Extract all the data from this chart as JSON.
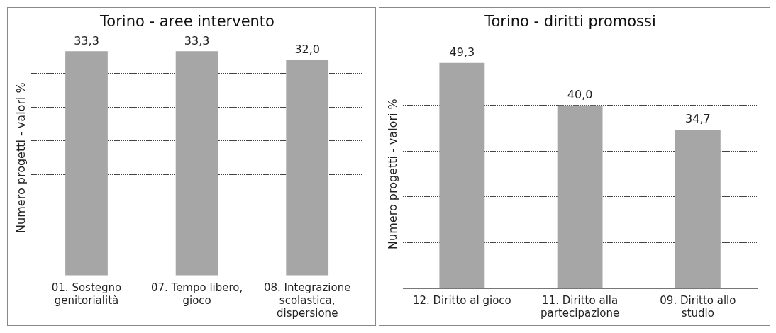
{
  "chart_data": [
    {
      "type": "bar",
      "title": "Torino - aree intervento",
      "ylabel": "Numero progetti - valori %",
      "categories": [
        "01. Sostegno genitorialità",
        "07. Tempo libero, gioco",
        "08. Integrazione scolastica, dispersione"
      ],
      "values": [
        33.3,
        33.3,
        32.0
      ],
      "value_labels": [
        "33,3",
        "33,3",
        "32,0"
      ],
      "color": "#a6a6a6",
      "ylim": [
        0,
        35
      ],
      "yticks": [
        {
          "value": 0,
          "label": null
        },
        {
          "value": 5,
          "label": null
        },
        {
          "value": 10,
          "label": null
        },
        {
          "value": 15,
          "label": null
        },
        {
          "value": 20,
          "label": null
        },
        {
          "value": 25,
          "label": null
        },
        {
          "value": 30,
          "label": null
        },
        {
          "value": 35,
          "label": null
        }
      ],
      "grid": "y",
      "legend": false
    },
    {
      "type": "bar",
      "title": "Torino - diritti promossi",
      "ylabel": "Numero progetti - valori %",
      "categories": [
        "12. Diritto al gioco",
        "11. Diritto alla partecipazione",
        "09. Diritto allo studio"
      ],
      "values": [
        49.3,
        40.0,
        34.7
      ],
      "value_labels": [
        "49,3",
        "40,0",
        "34,7"
      ],
      "color": "#a6a6a6",
      "ylim": [
        0,
        50
      ],
      "yticks": [
        {
          "value": 0,
          "label": null
        },
        {
          "value": 10,
          "label": null
        },
        {
          "value": 20,
          "label": null
        },
        {
          "value": 30,
          "label": null
        },
        {
          "value": 40,
          "label": null
        },
        {
          "value": 50,
          "label": null
        }
      ],
      "grid": "y",
      "legend": false
    }
  ]
}
